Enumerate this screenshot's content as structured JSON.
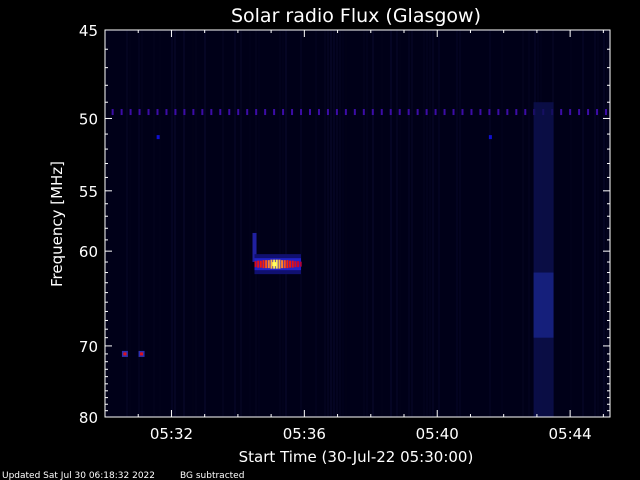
{
  "chart_data": {
    "type": "heatmap",
    "title": "Solar radio Flux (Glasgow)",
    "xlabel": "Start Time (30-Jul-22 05:30:00)",
    "ylabel": "Frequency [MHz]",
    "x_range_minutes": [
      0,
      15.2
    ],
    "x_ticks": [
      {
        "minute": 2,
        "label": "05:32"
      },
      {
        "minute": 6,
        "label": "05:36"
      },
      {
        "minute": 10,
        "label": "05:40"
      },
      {
        "minute": 14,
        "label": "05:44"
      }
    ],
    "y_range_mhz": [
      45,
      80
    ],
    "y_scale": "reciprocal",
    "y_ticks": [
      45,
      50,
      55,
      60,
      70,
      80
    ],
    "colormap": [
      "#000010",
      "#000060",
      "#1010d0",
      "#c00030",
      "#ff2000",
      "#ffff60"
    ],
    "features": [
      {
        "name": "burst",
        "minute_start": 4.5,
        "minute_end": 5.9,
        "mhz_center": 61.2,
        "peak_minute": 5.1,
        "intensity": 1.0
      },
      {
        "name": "interference-line",
        "mhz": 49.6,
        "minute_start": 0.2,
        "minute_end": 15.2,
        "intensity": 0.45
      },
      {
        "name": "faint-dot",
        "mhz": 51.2,
        "minute": 1.6,
        "intensity": 0.4
      },
      {
        "name": "faint-dot",
        "mhz": 51.2,
        "minute": 11.6,
        "intensity": 0.4
      },
      {
        "name": "point-source",
        "mhz": 71.0,
        "minute": 0.6,
        "intensity": 0.7
      },
      {
        "name": "point-source",
        "mhz": 71.0,
        "minute": 1.1,
        "intensity": 0.7
      },
      {
        "name": "emission-column",
        "minute_start": 12.9,
        "minute_end": 13.5,
        "mhz_start": 49,
        "mhz_end": 80,
        "intensity": 0.2
      }
    ]
  },
  "footer": {
    "updated": "Updated Sat Jul 30 06:18:32 2022",
    "note": "BG subtracted"
  }
}
